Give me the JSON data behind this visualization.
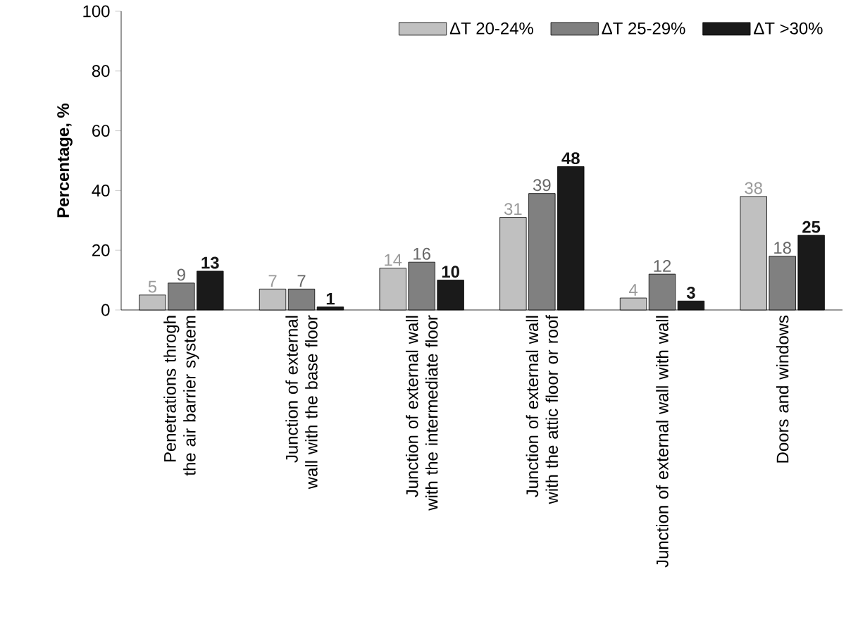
{
  "chart_data": {
    "type": "bar",
    "ylabel": "Percentage, %",
    "categories": [
      "Penetrations throgh the air barrier system",
      "Junction of external wall with the base floor",
      "Junction of external wall with the intermediate floor",
      "Junction of external wall with the attic floor or roof",
      "Junction of external wall with wall",
      "Doors and windows"
    ],
    "series": [
      {
        "name": "ΔT  20-24%",
        "color": "#c0c0c0",
        "values": [
          5,
          7,
          14,
          31,
          4,
          38
        ]
      },
      {
        "name": "ΔT  25-29%",
        "color": "#808080",
        "values": [
          9,
          7,
          16,
          39,
          12,
          18
        ]
      },
      {
        "name": "ΔT  >30%",
        "color": "#1a1a1a",
        "values": [
          13,
          1,
          10,
          48,
          3,
          25
        ]
      }
    ],
    "ylim": [
      0,
      100
    ],
    "yticks": [
      0,
      20,
      40,
      60,
      80,
      100
    ],
    "data_labels": true,
    "legend": "top right"
  }
}
